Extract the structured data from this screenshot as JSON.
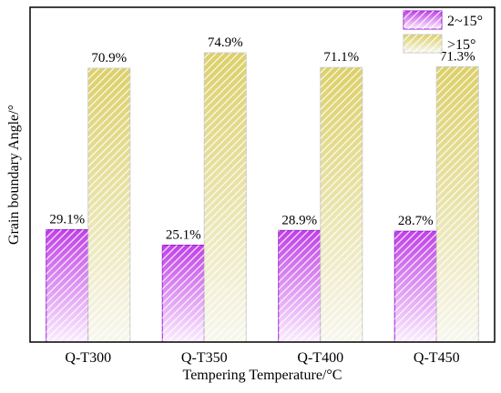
{
  "colors": {
    "series1_top": "#c040e8",
    "series1_bottom": "#fbeefe",
    "series1_edge": "#9a1fd0",
    "series2_top": "#dcd068",
    "series2_bottom": "#f7f7ef",
    "series2_edge": "#c8c8c8",
    "hatch": "#ffffff"
  },
  "chart_data": {
    "type": "bar",
    "title": "",
    "xlabel": "Tempering Temperature/°C",
    "ylabel": "Grain boundary Angle/°",
    "categories": [
      "Q-T300",
      "Q-T350",
      "Q-T400",
      "Q-T450"
    ],
    "series": [
      {
        "name": "2~15°",
        "values": [
          29.1,
          25.1,
          28.9,
          28.7
        ],
        "labels": [
          "29.1%",
          "25.1%",
          "28.9%",
          "28.7%"
        ]
      },
      {
        "name": ">15°",
        "values": [
          70.9,
          74.9,
          71.1,
          71.3
        ],
        "labels": [
          "70.9%",
          "74.9%",
          "71.1%",
          "71.3%"
        ]
      }
    ],
    "ylim": [
      0,
      86.7
    ],
    "y_ticks_shown": false,
    "grid": false,
    "legend": "top-right",
    "pattern": "diagonal-hatch-gradient"
  }
}
